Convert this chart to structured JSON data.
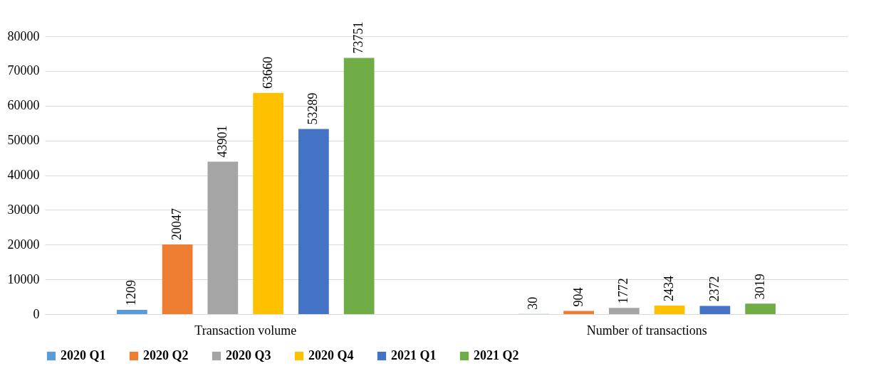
{
  "chart_data": {
    "type": "bar",
    "categories": [
      "Transaction volume",
      "Number of transactions"
    ],
    "series": [
      {
        "name": "2020 Q1",
        "color": "#5b9bd5",
        "values": [
          1209,
          30
        ]
      },
      {
        "name": "2020 Q2",
        "color": "#ed7d31",
        "values": [
          20047,
          904
        ]
      },
      {
        "name": "2020 Q3",
        "color": "#a5a5a5",
        "values": [
          43901,
          1772
        ]
      },
      {
        "name": "2020 Q4",
        "color": "#ffc000",
        "values": [
          63660,
          2434
        ]
      },
      {
        "name": "2021 Q1",
        "color": "#4472c4",
        "values": [
          53289,
          2372
        ]
      },
      {
        "name": "2021 Q2",
        "color": "#70ad47",
        "values": [
          73751,
          3019
        ]
      }
    ],
    "ylim": [
      0,
      80000
    ],
    "yticks": [
      0,
      10000,
      20000,
      30000,
      40000,
      50000,
      60000,
      70000,
      80000
    ],
    "grid": "y",
    "legend": "bottom",
    "data_labels": true
  }
}
